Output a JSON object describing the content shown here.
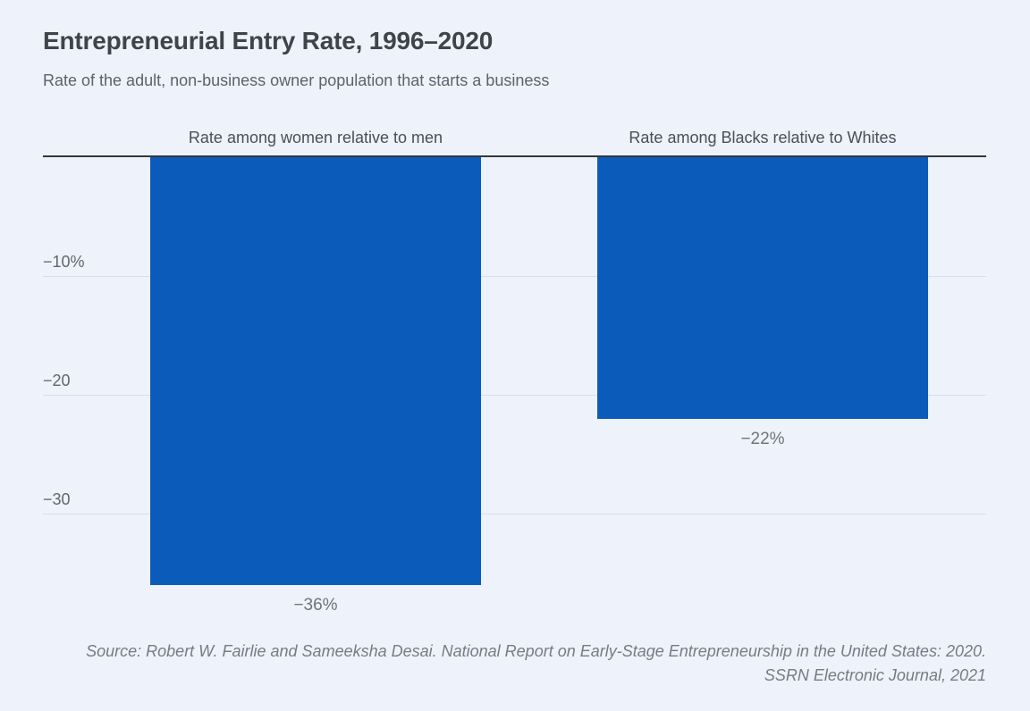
{
  "page": {
    "title": "Entrepreneurial Entry Rate, 1996–2020",
    "subtitle": "Rate of the adult, non-business owner population that starts a business"
  },
  "source": {
    "line1": "Source: Robert W. Fairlie and Sameeksha Desai. National Report on Early-Stage Entrepreneurship in the United States: 2020.",
    "line2": "SSRN Electronic Journal, 2021"
  },
  "colors": {
    "background": "#edf2fb",
    "bar": "#0b5cba",
    "axis_line": "#33373c",
    "gridline": "#d9dfe9",
    "title_text": "#3f444a",
    "subtitle_text": "#5c636b",
    "header_text": "#4a4f56",
    "tick_text": "#60666e",
    "value_text": "#6e747c",
    "source_text": "#767c85"
  },
  "chart_data": {
    "type": "bar",
    "categories": [
      "Rate among women relative to men",
      "Rate among Blacks relative to Whites"
    ],
    "values": [
      -36,
      -22
    ],
    "value_labels": [
      "−36%",
      "−22%"
    ],
    "yticks": [
      {
        "value": -10,
        "label": "−10%"
      },
      {
        "value": -20,
        "label": "−20"
      },
      {
        "value": -30,
        "label": "−30"
      }
    ],
    "ylim": [
      -38.5,
      0
    ],
    "baseline": 0,
    "grid": true,
    "legend_position": "none",
    "title": "Entrepreneurial Entry Rate, 1996–2020",
    "xlabel": "",
    "ylabel": ""
  }
}
